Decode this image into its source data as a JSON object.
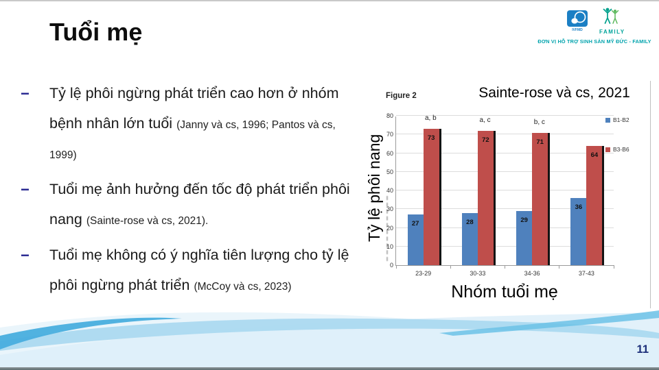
{
  "slide": {
    "title": "Tuổi mẹ",
    "page_number": "11"
  },
  "header_logo": {
    "ivfmd_label": "IVFMD",
    "family_label": "FAMILY",
    "tagline": "ĐƠN VỊ HỖ TRỢ SINH SẢN MỸ ĐỨC - FAMILY"
  },
  "bullets": [
    {
      "text": "Tỷ lệ phôi ngừng phát triển cao hơn ở nhóm bệnh nhân lớn tuổi",
      "citation": "(Janny và cs, 1996; Pantos và cs, 1999)"
    },
    {
      "text": "Tuổi mẹ ảnh hưởng đến tốc độ phát triển phôi nang",
      "citation": "(Sainte-rose và cs, 2021)."
    },
    {
      "text": "Tuổi mẹ không có ý nghĩa tiên lượng cho tỷ lệ phôi ngừng phát triển",
      "citation": "(McCoy và cs, 2023)"
    }
  ],
  "chart_data": {
    "type": "bar",
    "figure_label": "Figure 2",
    "title": "Sainte-rose và cs, 2021",
    "xlabel": "Nhóm tuổi mẹ",
    "ylabel": "Tỷ lệ phôi nang",
    "categories": [
      "23-29",
      "30-33",
      "34-36",
      "37-43"
    ],
    "series": [
      {
        "name": "B1-B2",
        "color": "#4f81bd",
        "values": [
          27,
          28,
          29,
          36
        ]
      },
      {
        "name": "B3-B6",
        "color": "#bf4e4b",
        "values": [
          73,
          72,
          71,
          64
        ]
      }
    ],
    "annotations": [
      "a, b",
      "a, c",
      "b, c",
      ""
    ],
    "ylim": [
      0,
      80
    ],
    "ytick_step": 10,
    "legend_position": "right",
    "grid": true
  },
  "colors": {
    "series_blue": "#4f81bd",
    "series_red": "#bf4e4b",
    "bullet_dash": "#23238f",
    "page_number_navy": "#1c2f7a",
    "tagline_teal": "#00a3ad",
    "ivfmd_blue": "#1b7fc4",
    "family_teal": "#00a49b",
    "bar_shadow_black": "#141414"
  }
}
